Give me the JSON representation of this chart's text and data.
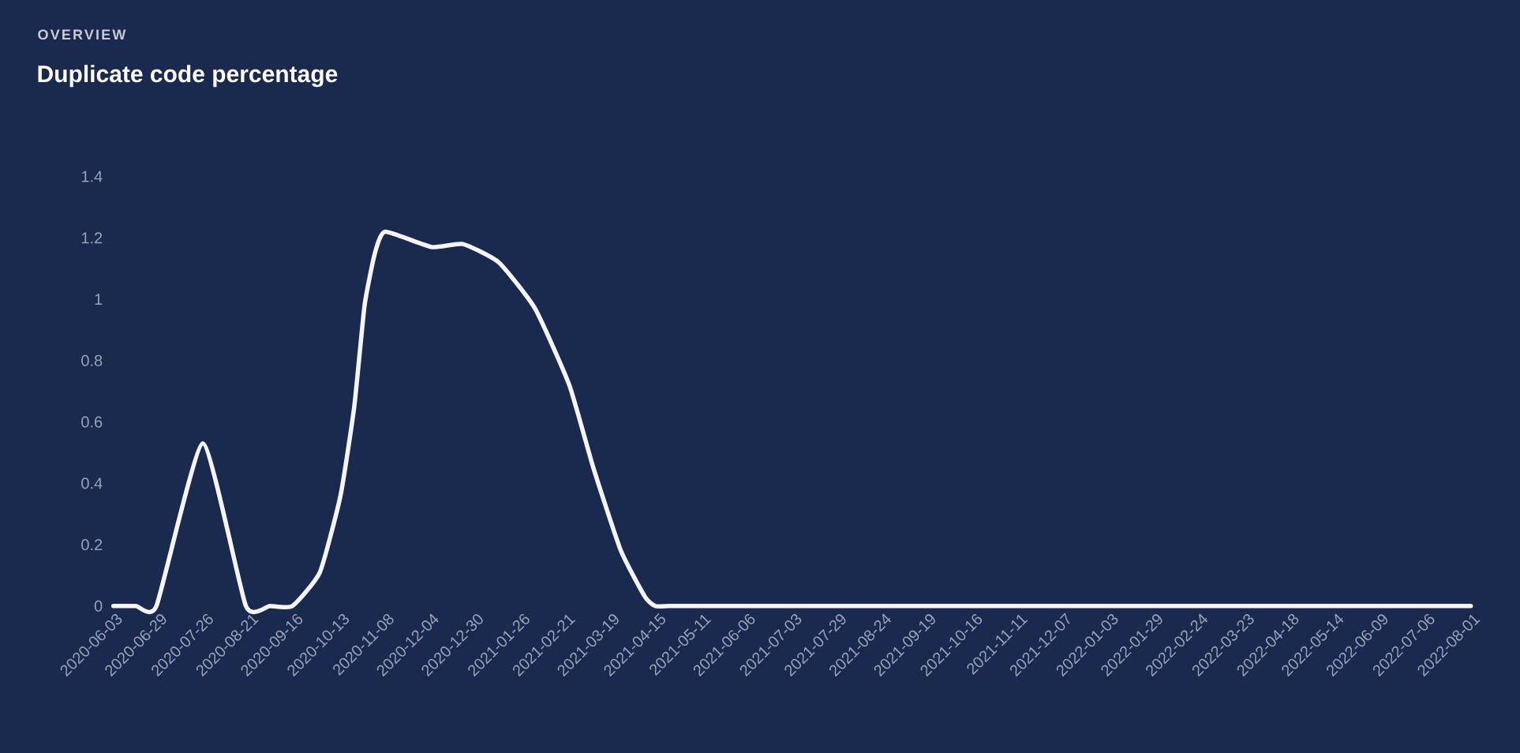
{
  "chart_data": {
    "type": "line",
    "subtitle": "OVERVIEW",
    "title": "Duplicate code percentage",
    "x": [
      "2020-06-03",
      "2020-06-16",
      "2020-06-28",
      "2020-07-25",
      "2020-08-19",
      "2020-09-02",
      "2020-09-15",
      "2020-10-01",
      "2020-10-13",
      "2020-10-21",
      "2020-10-27",
      "2020-11-02",
      "2020-11-08",
      "2020-12-05",
      "2020-12-23",
      "2021-01-13",
      "2021-02-03",
      "2021-02-23",
      "2021-03-09",
      "2021-03-25",
      "2021-04-08",
      "2021-04-14",
      "2021-04-22",
      "2021-05-11",
      "2021-06-06",
      "2021-07-03",
      "2021-07-29",
      "2021-08-24",
      "2021-09-19",
      "2021-10-16",
      "2021-11-11",
      "2021-12-07",
      "2022-01-03",
      "2022-01-29",
      "2022-02-24",
      "2022-03-23",
      "2022-04-18",
      "2022-05-14",
      "2022-06-09",
      "2022-07-06",
      "2022-08-01"
    ],
    "values": [
      0,
      0,
      0,
      0.53,
      0,
      0,
      0,
      0.11,
      0.36,
      0.65,
      0.98,
      1.15,
      1.22,
      1.17,
      1.18,
      1.12,
      0.97,
      0.72,
      0.45,
      0.18,
      0.03,
      0,
      0,
      0,
      0,
      0,
      0,
      0,
      0,
      0,
      0,
      0,
      0,
      0,
      0,
      0,
      0,
      0,
      0,
      0,
      0
    ],
    "color": "#f4f5f8",
    "xlim": [
      "2020-06-03",
      "2022-08-01"
    ],
    "xticks": [
      "2020-06-03",
      "2020-06-29",
      "2020-07-26",
      "2020-08-21",
      "2020-09-16",
      "2020-10-13",
      "2020-11-08",
      "2020-12-04",
      "2020-12-30",
      "2021-01-26",
      "2021-02-21",
      "2021-03-19",
      "2021-04-15",
      "2021-05-11",
      "2021-06-06",
      "2021-07-03",
      "2021-07-29",
      "2021-08-24",
      "2021-09-19",
      "2021-10-16",
      "2021-11-11",
      "2021-12-07",
      "2022-01-03",
      "2022-01-29",
      "2022-02-24",
      "2022-03-23",
      "2022-04-18",
      "2022-05-14",
      "2022-06-09",
      "2022-07-06",
      "2022-08-01"
    ],
    "ylim": [
      0,
      1.4
    ],
    "yticks": [
      0,
      0.2,
      0.4,
      0.6,
      0.8,
      1,
      1.2,
      1.4
    ],
    "grid": "y"
  }
}
